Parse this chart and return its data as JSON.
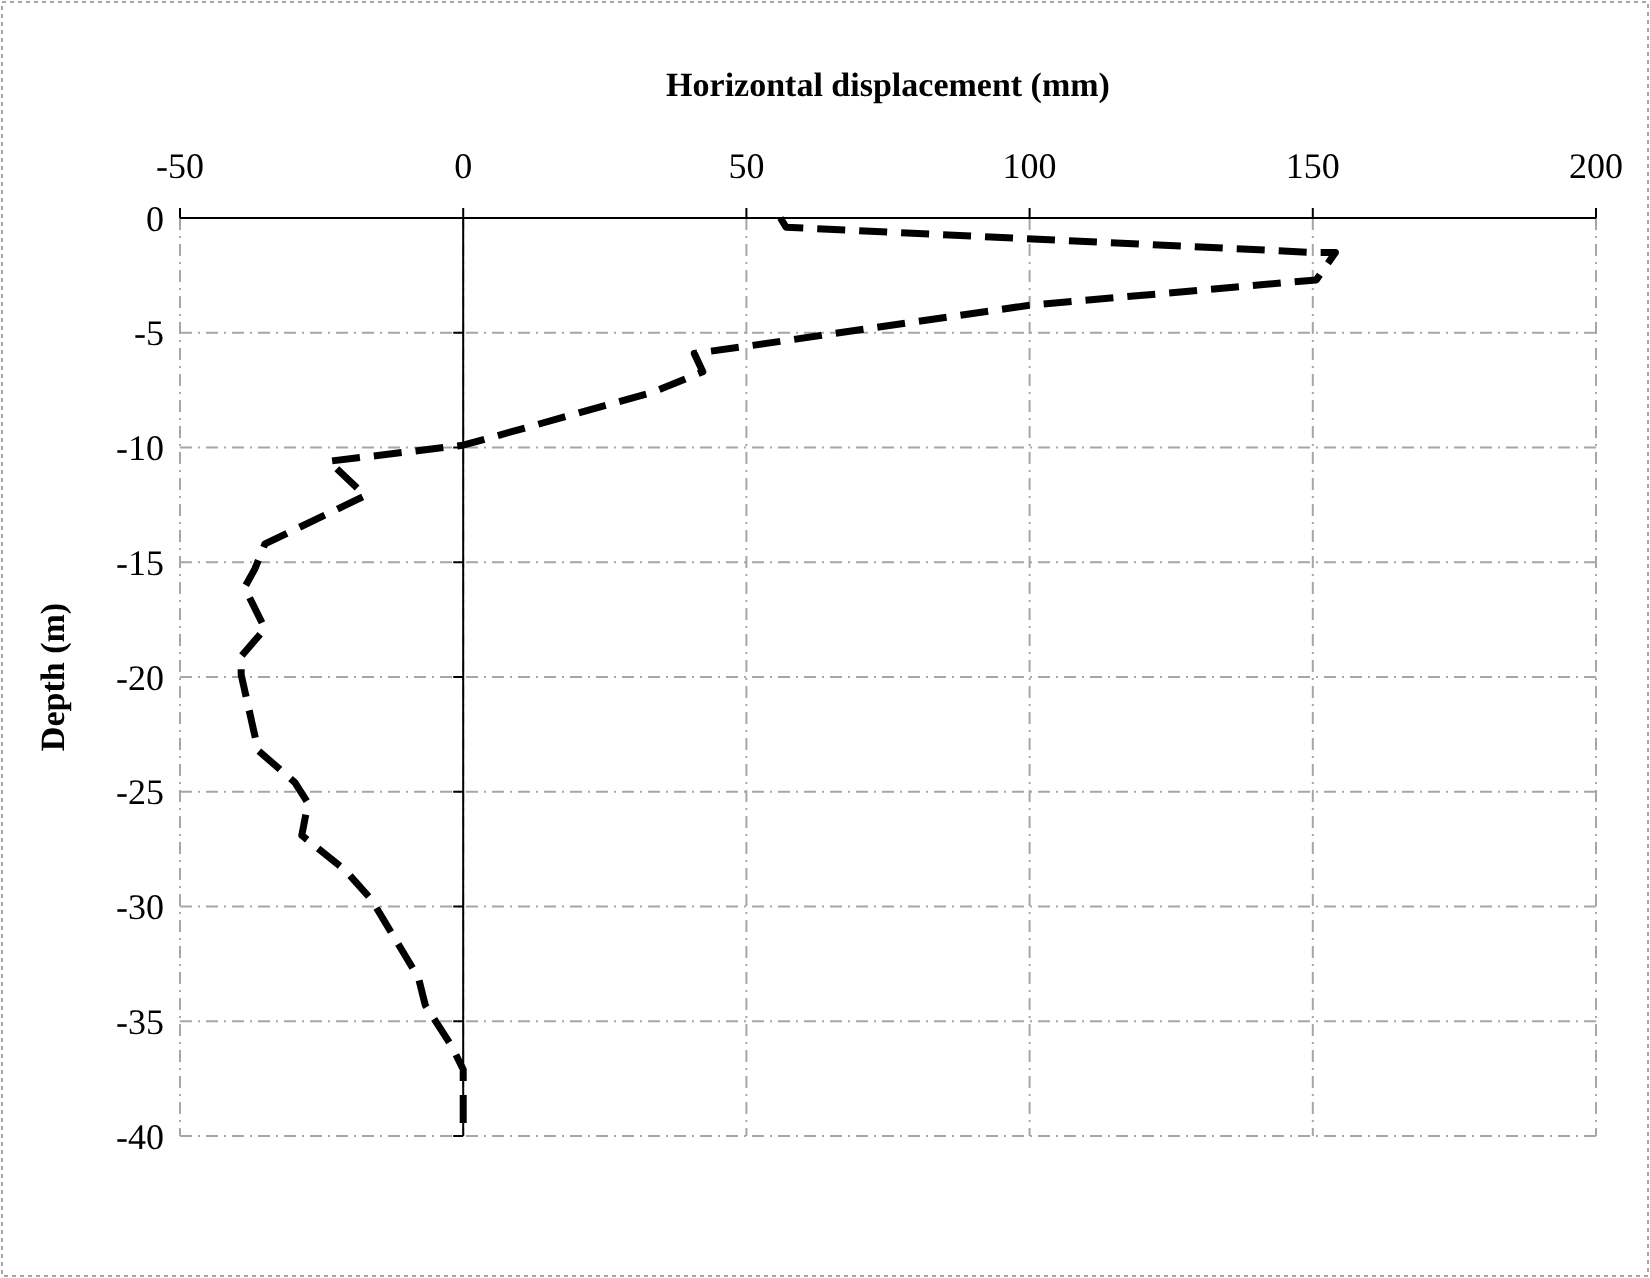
{
  "chart_data": {
    "type": "line",
    "xlabel": "Horizontal displacement (mm)",
    "ylabel": "Depth (m)",
    "xlim": [
      -50,
      200
    ],
    "xticks": [
      -50,
      0,
      50,
      100,
      150,
      200
    ],
    "ylim": [
      -40,
      0
    ],
    "yticks": [
      -40,
      -35,
      -30,
      -25,
      -20,
      -15,
      -10,
      -5,
      0
    ],
    "grid": true,
    "line_style": "dashed",
    "marker": "none",
    "series": [
      {
        "color": "#000000",
        "x": [
          56,
          57,
          150,
          154,
          150.6,
          100,
          49.7,
          40.8,
          42.3,
          33.4,
          0,
          -23.7,
          -17.3,
          -35,
          -36.8,
          -38.6,
          -35,
          -39.2,
          -39.2,
          -36.2,
          -29.7,
          -27.4,
          -28.5,
          -20.9,
          -16.2,
          -7.9,
          -6.7,
          -2,
          0,
          0
        ],
        "values": [
          0,
          -0.4,
          -1.5,
          -1.5,
          -2.7,
          -3.8,
          -5.6,
          -5.9,
          -6.7,
          -7.6,
          -9.9,
          -10.6,
          -12.1,
          -14.2,
          -15.3,
          -16.1,
          -17.9,
          -19.1,
          -19.9,
          -23.2,
          -24.6,
          -25.5,
          -26.9,
          -28.4,
          -29.7,
          -33.1,
          -34.3,
          -36.1,
          -37.1,
          -39.5
        ]
      }
    ]
  }
}
